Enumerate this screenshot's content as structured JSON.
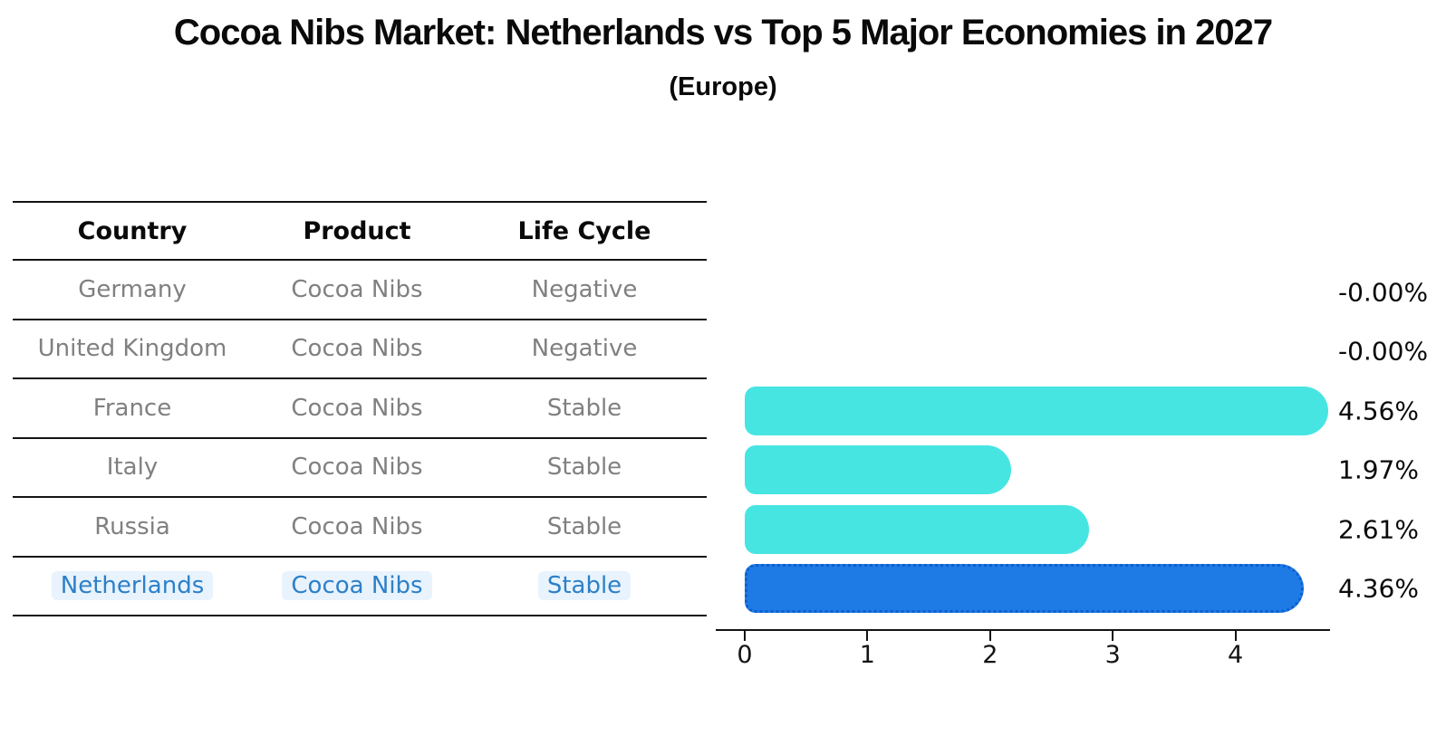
{
  "header": {
    "title": "Cocoa Nibs Market: Netherlands vs Top 5 Major Economies in 2027",
    "subtitle": "(Europe)"
  },
  "table": {
    "columns": [
      "Country",
      "Product",
      "Life Cycle"
    ],
    "rows": [
      {
        "country": "Germany",
        "product": "Cocoa Nibs",
        "life_cycle": "Negative",
        "highlight": false
      },
      {
        "country": "United Kingdom",
        "product": "Cocoa Nibs",
        "life_cycle": "Negative",
        "highlight": false
      },
      {
        "country": "France",
        "product": "Cocoa Nibs",
        "life_cycle": "Stable",
        "highlight": false
      },
      {
        "country": "Italy",
        "product": "Cocoa Nibs",
        "life_cycle": "Stable",
        "highlight": false
      },
      {
        "country": "Russia",
        "product": "Cocoa Nibs",
        "life_cycle": "Stable",
        "highlight": false
      },
      {
        "country": "Netherlands",
        "product": "Cocoa Nibs",
        "life_cycle": "Stable",
        "highlight": true
      }
    ]
  },
  "chart_data": {
    "type": "bar",
    "orientation": "horizontal",
    "title": "Cocoa Nibs Market: Netherlands vs Top 5 Major Economies in 2027",
    "subtitle": "(Europe)",
    "categories": [
      "Germany",
      "United Kingdom",
      "France",
      "Italy",
      "Russia",
      "Netherlands"
    ],
    "values": [
      -0.0,
      -0.0,
      4.56,
      1.97,
      2.61,
      4.36
    ],
    "value_labels": [
      "-0.00%",
      "-0.00%",
      "4.56%",
      "1.97%",
      "2.61%",
      "4.36%"
    ],
    "x_ticks": [
      "0",
      "1",
      "2",
      "3",
      "4"
    ],
    "xlim": [
      0,
      4.77
    ],
    "grid": false,
    "legend": false,
    "bar_color": "#46e5e2",
    "highlight_bar_color": "#1e7be6",
    "highlight_border_color": "#0d5fd0",
    "highlight_text_color": "#2d80c8",
    "row_text_color": "#808080",
    "highlight_index": 5
  }
}
